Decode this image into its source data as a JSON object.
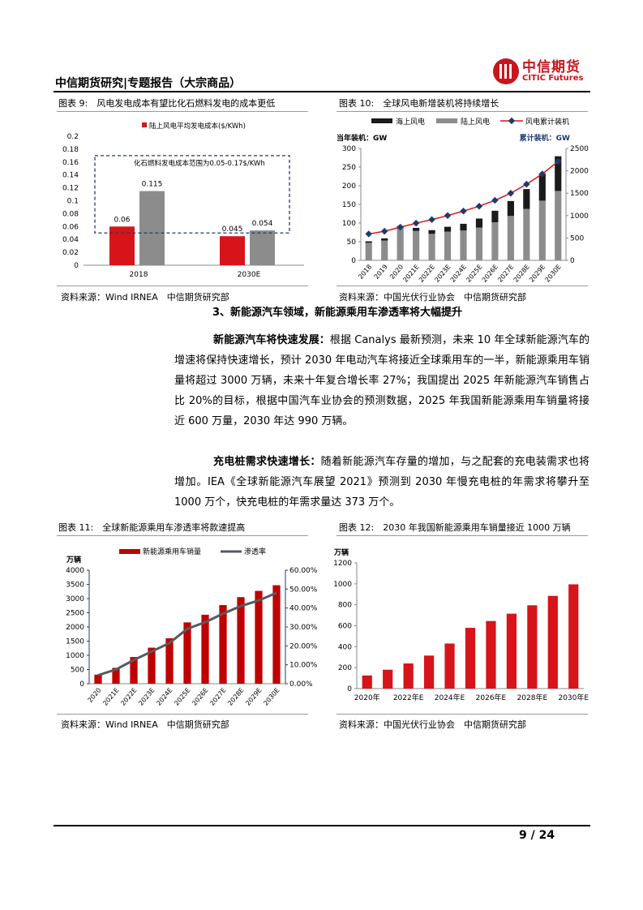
{
  "header": {
    "title": "中信期货研究|专题报告（大宗商品）",
    "logo_cn": "中信期货",
    "logo_en": "CITIC Futures"
  },
  "fig9": {
    "title": "图表 9:　风电发电成本有望比化石燃料发电的成本更低",
    "source": "资料来源：Wind IRNEA　中信期货研究部"
  },
  "fig10": {
    "title": "图表 10:　全球风电新增装机将持续增长",
    "source": "资料来源：中国光伏行业协会　中信期货研究部"
  },
  "section": {
    "heading": "3、新能源汽车领域，新能源乘用车渗透率将大幅提升"
  },
  "paragraphs": [
    {
      "lead": "新能源汽车将快速发展：",
      "text": "根据 Canalys 最新预测，未来 10 年全球新能源汽车的增速将保持快速增长，预计 2030 年电动汽车将接近全球乘用车的一半，新能源乘用车销量将超过 3000 万辆，未来十年复合增长率 27%；我国提出 2025 年新能源汽车销售占比 20%的目标，根据中国汽车业协会的预测数据，2025 年我国新能源乘用车销量将接近 600 万量，2030 年达 990 万辆。"
    },
    {
      "lead": "充电桩需求快速增长：",
      "text": "随着新能源汽车存量的增加，与之配套的充电装需求也将增加。IEA《全球新能源汽车展望 2021》预测到 2030 年慢充电桩的年需求将攀升至 1000 万个，快充电桩的年需求量达 373 万个。"
    }
  ],
  "fig11": {
    "title": "图表 11:　全球新能源乘用车渗透率将款速提高",
    "source": "资料来源：Wind IRNEA　中信期货研究部"
  },
  "fig12": {
    "title": "图表 12:　2030 年我国新能源乘用车销量接近 1000 万辆",
    "source": "资料来源：中国光伏行业协会　中信期货研究部"
  },
  "footer": {
    "page": "9 / 24"
  },
  "chart_data": [
    {
      "id": "fig9",
      "type": "bar",
      "categories": [
        "2018",
        "2030E"
      ],
      "series": [
        {
          "name": "陆上风电平均发电成本($/KWh)",
          "values": [
            0.06,
            0.045
          ],
          "color": "#d7141a"
        },
        {
          "name": "",
          "values": [
            0.115,
            0.054
          ],
          "color": "#8c8c8c"
        }
      ],
      "ylim": [
        0,
        0.2
      ],
      "yticks": [
        "0",
        "0.02",
        "0.04",
        "0.06",
        "0.08",
        "0.1",
        "0.12",
        "0.14",
        "0.16",
        "0.18",
        "0.2"
      ],
      "data_labels": [
        "0.06",
        "0.115",
        "0.045",
        "0.054"
      ],
      "annotation": {
        "text": "化石燃料发电成本范围为0.05-0.17$/KWh",
        "range": [
          0.05,
          0.17
        ]
      }
    },
    {
      "id": "fig10",
      "type": "bar",
      "stacked": true,
      "categories": [
        "2018",
        "2019",
        "2020",
        "2021E",
        "2022E",
        "2023E",
        "2024E",
        "2025E",
        "2026E",
        "2027E",
        "2028E",
        "2029E",
        "2030E"
      ],
      "series": [
        {
          "name": "陆上风电",
          "values": [
            47,
            53,
            87,
            79,
            71,
            77,
            80,
            88,
            102,
            119,
            138,
            160,
            186
          ],
          "color": "#8c8c8c"
        },
        {
          "name": "海上风电",
          "values": [
            4,
            6,
            5,
            8,
            10,
            13,
            18,
            24,
            31,
            40,
            53,
            72,
            93
          ],
          "color": "#1a1a1a"
        },
        {
          "name": "风电累计装机",
          "axis": "right",
          "type": "line",
          "values": [
            590,
            650,
            740,
            830,
            910,
            1000,
            1100,
            1210,
            1340,
            1500,
            1700,
            1930,
            2210
          ],
          "color": "#d7141a",
          "marker": "#1f3a6b"
        }
      ],
      "ylabel": "当年装机：GW",
      "y2label": "累计装机：GW",
      "ylim": [
        0,
        300
      ],
      "y2lim": [
        0,
        2500
      ],
      "yticks": [
        "0",
        "50",
        "100",
        "150",
        "200",
        "250",
        "300"
      ],
      "y2ticks": [
        "0",
        "500",
        "1000",
        "1500",
        "2000",
        "2500"
      ],
      "legend": "top"
    },
    {
      "id": "fig11",
      "type": "bar",
      "categories": [
        "2020",
        "2021E",
        "2022E",
        "2023E",
        "2024E",
        "2025E",
        "2026E",
        "2027E",
        "2028E",
        "2029E",
        "2030E"
      ],
      "series": [
        {
          "name": "新能源乘用车销量",
          "values": [
            320,
            560,
            940,
            1270,
            1600,
            2160,
            2430,
            2770,
            3050,
            3270,
            3470
          ],
          "color": "#c00000"
        },
        {
          "name": "渗透率",
          "axis": "right",
          "type": "line",
          "values": [
            4.5,
            7.5,
            12.5,
            17,
            21.5,
            29,
            32.5,
            37,
            41,
            44,
            48
          ],
          "color": "#555a60"
        }
      ],
      "ylabel": "万辆",
      "ylim": [
        0,
        4000
      ],
      "y2lim": [
        0,
        60
      ],
      "yticks": [
        "0",
        "500",
        "1000",
        "1500",
        "2000",
        "2500",
        "3000",
        "3500",
        "4000"
      ],
      "y2ticks": [
        "0.00%",
        "10.00%",
        "20.00%",
        "30.00%",
        "40.00%",
        "50.00%",
        "60.00%"
      ],
      "legend": "top"
    },
    {
      "id": "fig12",
      "type": "bar",
      "categories": [
        "2020年",
        "2021年E",
        "2022年E",
        "2023年E",
        "2024年E",
        "2025年E",
        "2026年E",
        "2027年E",
        "2028年E",
        "2029年E",
        "2030年E"
      ],
      "xticklabels": [
        "2020年",
        "",
        "2022年E",
        "",
        "2024年E",
        "",
        "2026年E",
        "",
        "2028年E",
        "",
        "2030年E"
      ],
      "series": [
        {
          "values": [
            125,
            180,
            240,
            315,
            430,
            580,
            645,
            715,
            795,
            885,
            995
          ],
          "color": "#d7141a"
        }
      ],
      "ylabel": "万辆",
      "ylim": [
        0,
        1200
      ],
      "yticks": [
        "0",
        "200",
        "400",
        "600",
        "800",
        "1000",
        "1200"
      ]
    }
  ]
}
